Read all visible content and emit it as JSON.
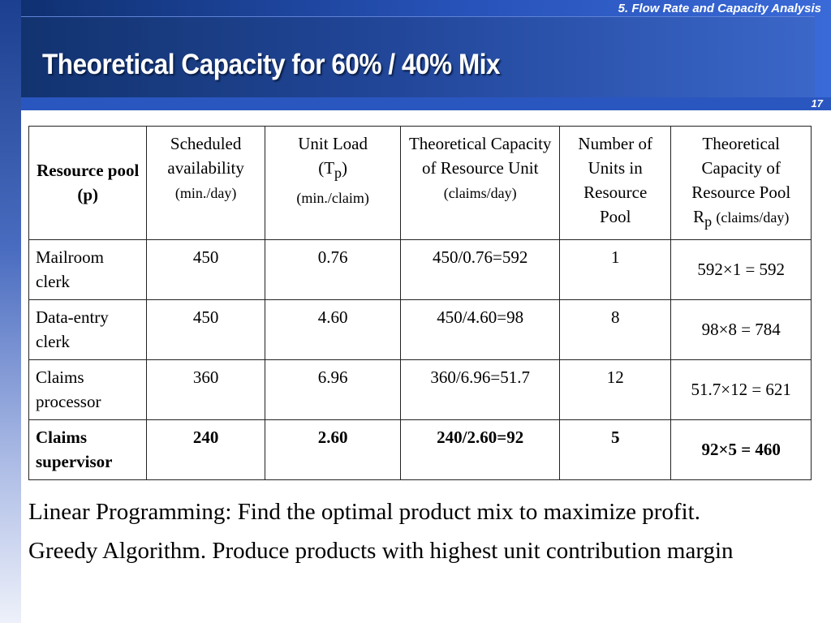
{
  "header": {
    "chapter": "5. Flow Rate and Capacity Analysis",
    "title": "Theoretical Capacity for 60% / 40% Mix",
    "page_number": "17"
  },
  "table": {
    "headers": [
      {
        "main": "Resource pool (p)"
      },
      {
        "main": "Scheduled availability",
        "unit": "(min./day)"
      },
      {
        "main": "Unit Load",
        "symbol": "T",
        "sub": "p",
        "unit": "(min./claim)"
      },
      {
        "main": "Theoretical Capacity of Resource Unit",
        "unit": "(claims/day)"
      },
      {
        "main": "Number of Units in Resource Pool"
      },
      {
        "main": "Theoretical Capacity  of Resource Pool",
        "symbol": "R",
        "sub": "p",
        "unit": "(claims/day)"
      }
    ],
    "rows": [
      {
        "cells": [
          "Mailroom clerk",
          "450",
          "0.76",
          "450/0.76=592",
          "1",
          "592×1 = 592"
        ],
        "bold": false
      },
      {
        "cells": [
          "Data-entry clerk",
          "450",
          "4.60",
          "450/4.60=98",
          "8",
          "98×8 = 784"
        ],
        "bold": false
      },
      {
        "cells": [
          "Claims processor",
          "360",
          "6.96",
          "360/6.96=51.7",
          "12",
          "51.7×12 = 621"
        ],
        "bold": false
      },
      {
        "cells": [
          "Claims supervisor",
          "240",
          "2.60",
          "240/2.60=92",
          "5",
          "92×5 = 460"
        ],
        "bold": true
      }
    ]
  },
  "notes": [
    "Linear Programming: Find the optimal product mix to maximize profit.",
    "Greedy Algorithm. Produce products with highest unit contribution margin"
  ]
}
